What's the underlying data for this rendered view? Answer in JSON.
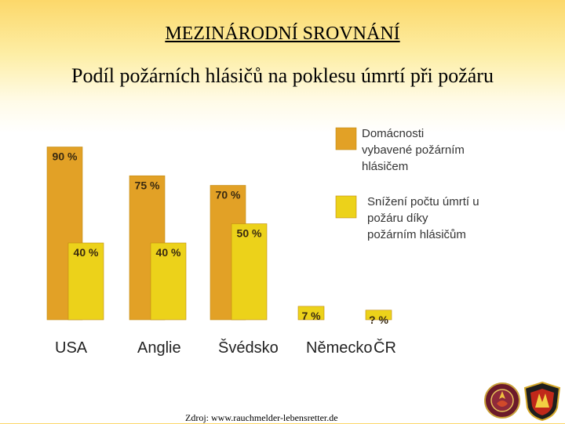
{
  "header": {
    "title": "MEZINÁRODNÍ SROVNÁNÍ",
    "subtitle": "Podíl požárních hlásičů na poklesu úmrtí při požáru"
  },
  "chart_data": {
    "type": "bar",
    "categories": [
      "USA",
      "Anglie",
      "Švédsko",
      "Německo",
      "ČR"
    ],
    "series": [
      {
        "name": "Domácnosti vybavené požárním hlásičem",
        "values": [
          90,
          75,
          70,
          null,
          null
        ],
        "labels": [
          "90 %",
          "75 %",
          "70 %",
          "",
          ""
        ],
        "color": "#e2a126"
      },
      {
        "name": "Snížení počtu úmrtí u požáru díky požárním hlásičům",
        "values": [
          40,
          40,
          50,
          7,
          5
        ],
        "labels": [
          "40 %",
          "40 %",
          "50 %",
          "7 %",
          "? %"
        ],
        "color": "#ecd21a"
      }
    ],
    "legend": {
      "position": "top-right",
      "entries": [
        {
          "lines": [
            "Domácnosti",
            "vybavené požárním",
            "hlásičem"
          ],
          "color": "#e2a126"
        },
        {
          "lines": [
            "Snížení počtu úmrtí u",
            "požáru díky",
            "požárním hlásičům"
          ],
          "color": "#ecd21a"
        }
      ]
    },
    "ylim": [
      0,
      100
    ],
    "grid": false
  },
  "footer": {
    "source": "Zdroj: www.rauchmelder-lebensretter.de"
  }
}
